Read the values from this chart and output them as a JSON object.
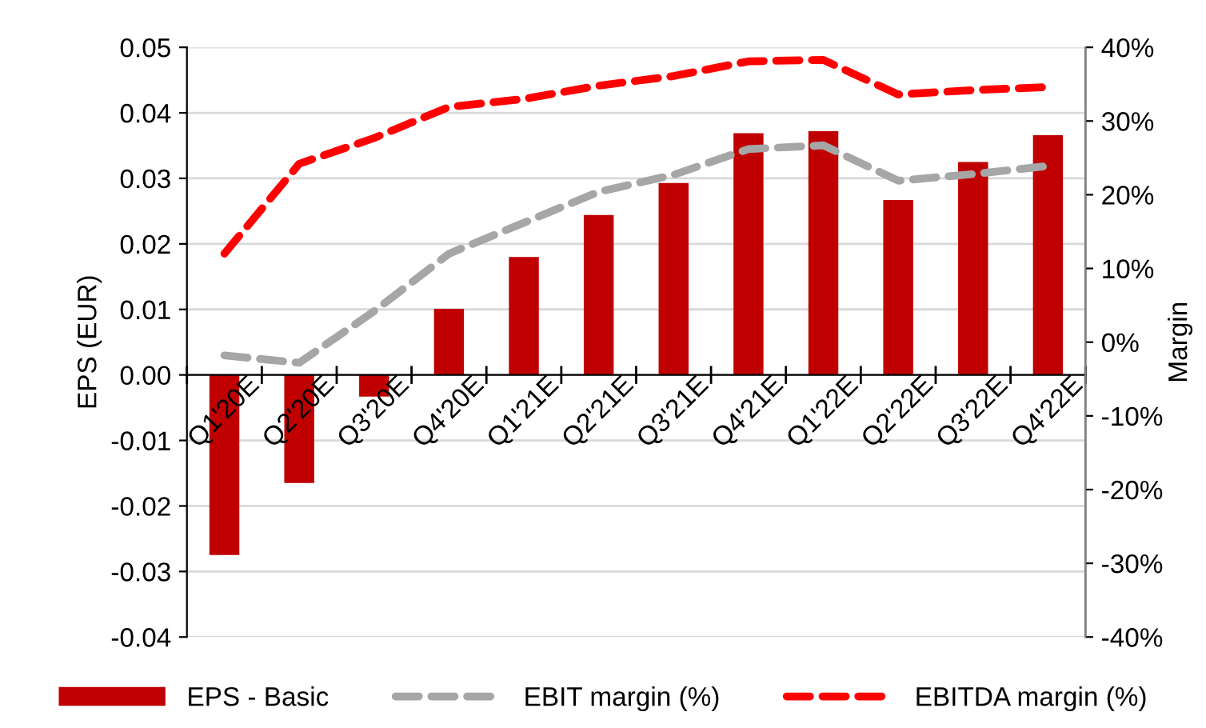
{
  "chart_data": {
    "type": "bar",
    "ylabel": "EPS (EUR)",
    "y2label": "Margin",
    "categories": [
      "Q1'20E",
      "Q2'20E",
      "Q3'20E",
      "Q4'20E",
      "Q1'21E",
      "Q2'21E",
      "Q3'21E",
      "Q4'21E",
      "Q1'22E",
      "Q2'22E",
      "Q3'22E",
      "Q4'22E"
    ],
    "series": [
      {
        "name": "EPS - Basic",
        "color": "#c00000",
        "values": [
          -0.0275,
          -0.0165,
          -0.0033,
          0.0101,
          0.018,
          0.0244,
          0.0293,
          0.0369,
          0.0372,
          0.0267,
          0.0325,
          0.0366
        ]
      },
      {
        "name": "EBIT margin (%)",
        "type": "line",
        "axis": "y2",
        "color": "#a6a6a6",
        "line_style": "dashed",
        "values": [
          -1.8,
          -2.8,
          4.2,
          12.0,
          16.2,
          20.4,
          22.7,
          26.2,
          26.7,
          21.9,
          22.8,
          23.9
        ]
      },
      {
        "name": "EBITDA margin (%)",
        "type": "line",
        "axis": "y2",
        "color": "#ff0000",
        "line_style": "dashed",
        "values": [
          12.0,
          24.2,
          27.7,
          31.9,
          33.0,
          34.8,
          36.1,
          38.1,
          38.3,
          33.6,
          34.2,
          34.6
        ]
      }
    ],
    "ylim": [
      -0.04,
      0.05
    ],
    "yticks": [
      {
        "value": -0.04,
        "label": "-0.04"
      },
      {
        "value": -0.03,
        "label": "-0.03"
      },
      {
        "value": -0.02,
        "label": "-0.02"
      },
      {
        "value": -0.01,
        "label": "-0.01"
      },
      {
        "value": 0,
        "label": "0.00"
      },
      {
        "value": 0.01,
        "label": "0.01"
      },
      {
        "value": 0.02,
        "label": "0.02"
      },
      {
        "value": 0.03,
        "label": "0.03"
      },
      {
        "value": 0.04,
        "label": "0.04"
      },
      {
        "value": 0.05,
        "label": "0.05"
      }
    ],
    "y2lim": [
      -40,
      40
    ],
    "y2ticks": [
      {
        "value": -40,
        "label": "-40%"
      },
      {
        "value": -30,
        "label": "-30%"
      },
      {
        "value": -20,
        "label": "-20%"
      },
      {
        "value": -10,
        "label": "-10%"
      },
      {
        "value": 0,
        "label": "0%"
      },
      {
        "value": 10,
        "label": "10%"
      },
      {
        "value": 20,
        "label": "20%"
      },
      {
        "value": 30,
        "label": "30%"
      },
      {
        "value": 40,
        "label": "40%"
      }
    ],
    "grid": "y",
    "legend": "bottom",
    "marker": "none"
  }
}
